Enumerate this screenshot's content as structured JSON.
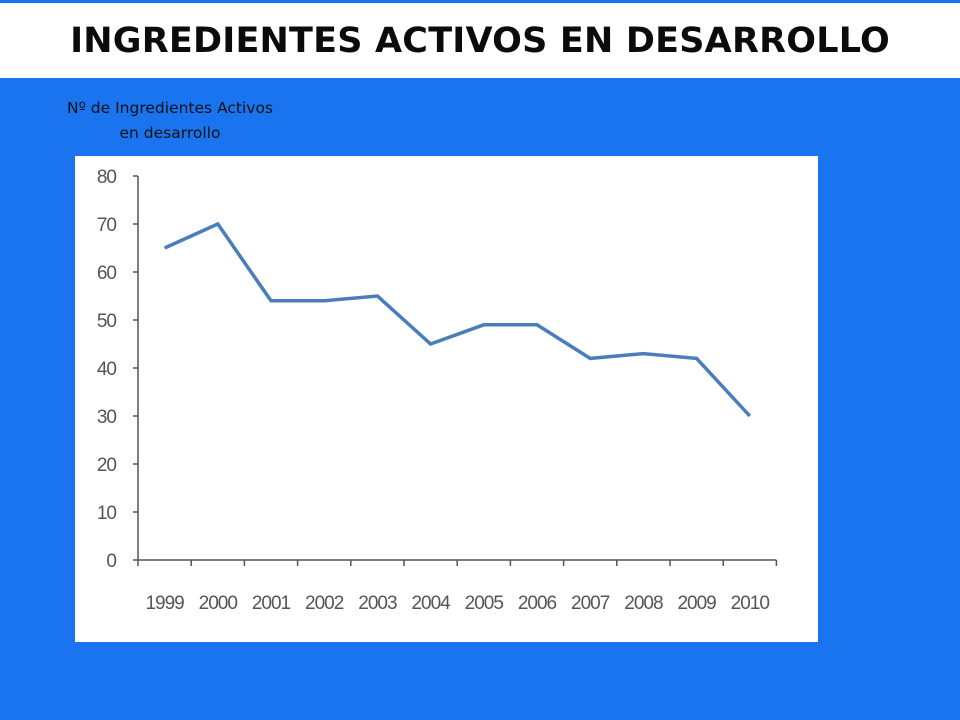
{
  "header": {
    "title": "INGREDIENTES ACTIVOS EN DESARROLLO"
  },
  "chart_label": {
    "line1": "Nº de Ingredientes  Activos",
    "line2": "en desarrollo"
  },
  "colors": {
    "background": "#1a74f0",
    "line": "#4a7ebb",
    "axis": "#555555"
  },
  "chart_data": {
    "type": "line",
    "title": "",
    "xlabel": "",
    "ylabel": "Nº de Ingredientes  Activos en desarrollo",
    "categories": [
      "1999",
      "2000",
      "2001",
      "2002",
      "2003",
      "2004",
      "2005",
      "2006",
      "2007",
      "2008",
      "2009",
      "2010"
    ],
    "values": [
      65,
      70,
      54,
      54,
      55,
      45,
      49,
      49,
      42,
      43,
      42,
      30
    ],
    "ylim": [
      0,
      80
    ],
    "yticks": [
      0,
      10,
      20,
      30,
      40,
      50,
      60,
      70,
      80
    ],
    "grid": false,
    "legend": "none"
  }
}
